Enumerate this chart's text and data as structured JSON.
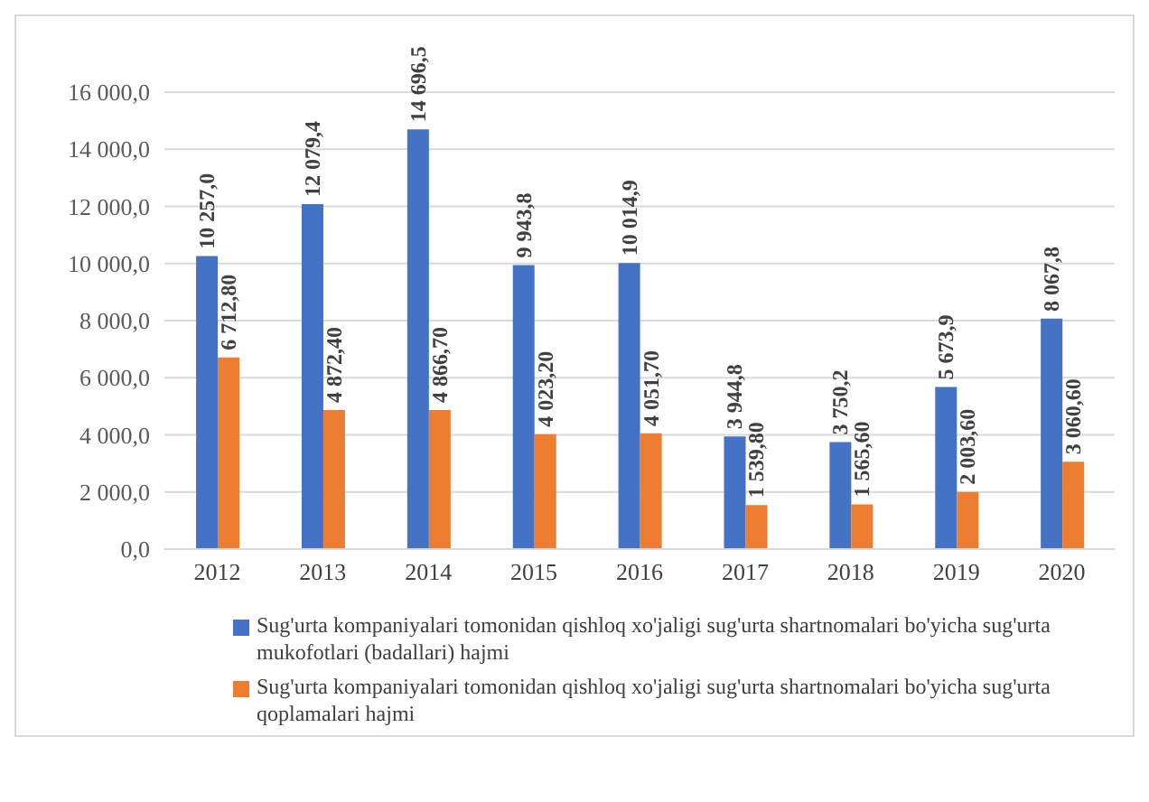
{
  "chart_data": {
    "type": "bar",
    "categories": [
      "2012",
      "2013",
      "2014",
      "2015",
      "2016",
      "2017",
      "2018",
      "2019",
      "2020"
    ],
    "series": [
      {
        "name": "Sug'urta kompaniyalari tomonidan qishloq xo'jaligi sug'urta shartnomalari bo'yicha sug'urta mukofotlari (badallari) hajmi",
        "color": "#4472c4",
        "values": [
          10257.0,
          12079.4,
          14696.5,
          9943.8,
          10014.9,
          3944.8,
          3750.2,
          5673.9,
          8067.8
        ],
        "value_labels": [
          "10 257,0",
          "12 079,4",
          "14 696,5",
          "9 943,8",
          "10 014,9",
          "3 944,8",
          "3 750,2",
          "5 673,9",
          "8 067,8"
        ]
      },
      {
        "name": "Sug'urta kompaniyalari tomonidan qishloq xo'jaligi sug'urta shartnomalari bo'yicha sug'urta qoplamalari hajmi",
        "color": "#ed7d31",
        "values": [
          6712.8,
          4872.4,
          4866.7,
          4023.2,
          4051.7,
          1539.8,
          1565.6,
          2003.6,
          3060.6
        ],
        "value_labels": [
          "6 712,80",
          "4 872,40",
          "4 866,70",
          "4 023,20",
          "4 051,70",
          "1 539,80",
          "1 565,60",
          "2 003,60",
          "3 060,60"
        ]
      }
    ],
    "ylim": [
      0,
      16000
    ],
    "yticks": [
      {
        "value": 0,
        "label": "0,0"
      },
      {
        "value": 2000,
        "label": "2 000,0"
      },
      {
        "value": 4000,
        "label": "4 000,0"
      },
      {
        "value": 6000,
        "label": "6 000,0"
      },
      {
        "value": 8000,
        "label": "8 000,0"
      },
      {
        "value": 10000,
        "label": "10 000,0"
      },
      {
        "value": 12000,
        "label": "12 000,0"
      },
      {
        "value": 14000,
        "label": "14 000,0"
      },
      {
        "value": 16000,
        "label": "16 000,0"
      }
    ],
    "grid": "y",
    "legend": "bottom"
  }
}
